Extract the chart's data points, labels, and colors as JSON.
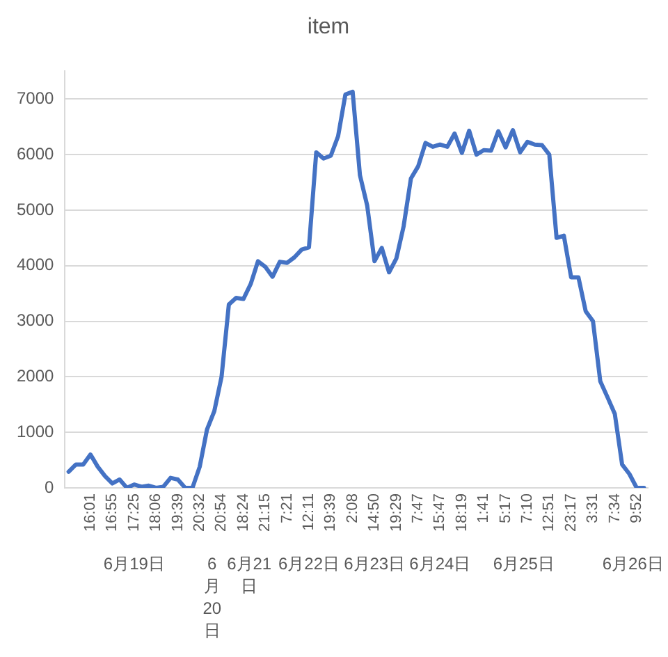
{
  "chart_data": {
    "type": "line",
    "title": "item",
    "categories": [
      null,
      null,
      null,
      "16:01",
      null,
      null,
      "16:55",
      null,
      null,
      "17:25",
      null,
      null,
      "18:06",
      null,
      null,
      "19:39",
      null,
      null,
      "20:32",
      null,
      null,
      "20:54",
      null,
      null,
      "18:24",
      null,
      null,
      "21:15",
      null,
      null,
      "7:21",
      null,
      null,
      "12:11",
      null,
      null,
      "19:39",
      null,
      null,
      "2:08",
      null,
      null,
      "14:50",
      null,
      null,
      "19:29",
      null,
      null,
      "7:47",
      null,
      null,
      "15:47",
      null,
      null,
      "18:19",
      null,
      null,
      "1:41",
      null,
      null,
      "5:17",
      null,
      null,
      "7:10",
      null,
      null,
      "12:51",
      null,
      null,
      "23:17",
      null,
      null,
      "3:31",
      null,
      null,
      "7:34",
      null,
      null,
      "9:52",
      null
    ],
    "series": [
      {
        "color": "#4472c4",
        "values": [
          290,
          420,
          420,
          600,
          380,
          210,
          80,
          150,
          0,
          60,
          20,
          40,
          0,
          20,
          180,
          150,
          0,
          0,
          380,
          1050,
          1380,
          2000,
          3300,
          3420,
          3400,
          3670,
          4080,
          3980,
          3800,
          4070,
          4050,
          4150,
          4290,
          4330,
          6040,
          5930,
          5980,
          6330,
          7080,
          7130,
          5630,
          5080,
          4080,
          4320,
          3880,
          4130,
          4710,
          5570,
          5790,
          6210,
          6140,
          6180,
          6140,
          6380,
          6030,
          6430,
          6000,
          6080,
          6070,
          6420,
          6130,
          6440,
          6040,
          6230,
          6180,
          6170,
          6000,
          4500,
          4540,
          3790,
          3790,
          3180,
          3000,
          1920,
          1630,
          1330,
          420,
          250,
          0,
          0
        ]
      }
    ],
    "ylim": [
      0,
      7500
    ],
    "yticks": [
      0,
      1000,
      2000,
      3000,
      4000,
      5000,
      6000,
      7000
    ],
    "grid": "y",
    "legend": false,
    "marker": "none",
    "line_style": "solid",
    "annotations": [
      "6月19日",
      "6月20日",
      "6月21日",
      "6月22日",
      "6月23日",
      "6月24日",
      "6月25日",
      "6月26日"
    ]
  }
}
